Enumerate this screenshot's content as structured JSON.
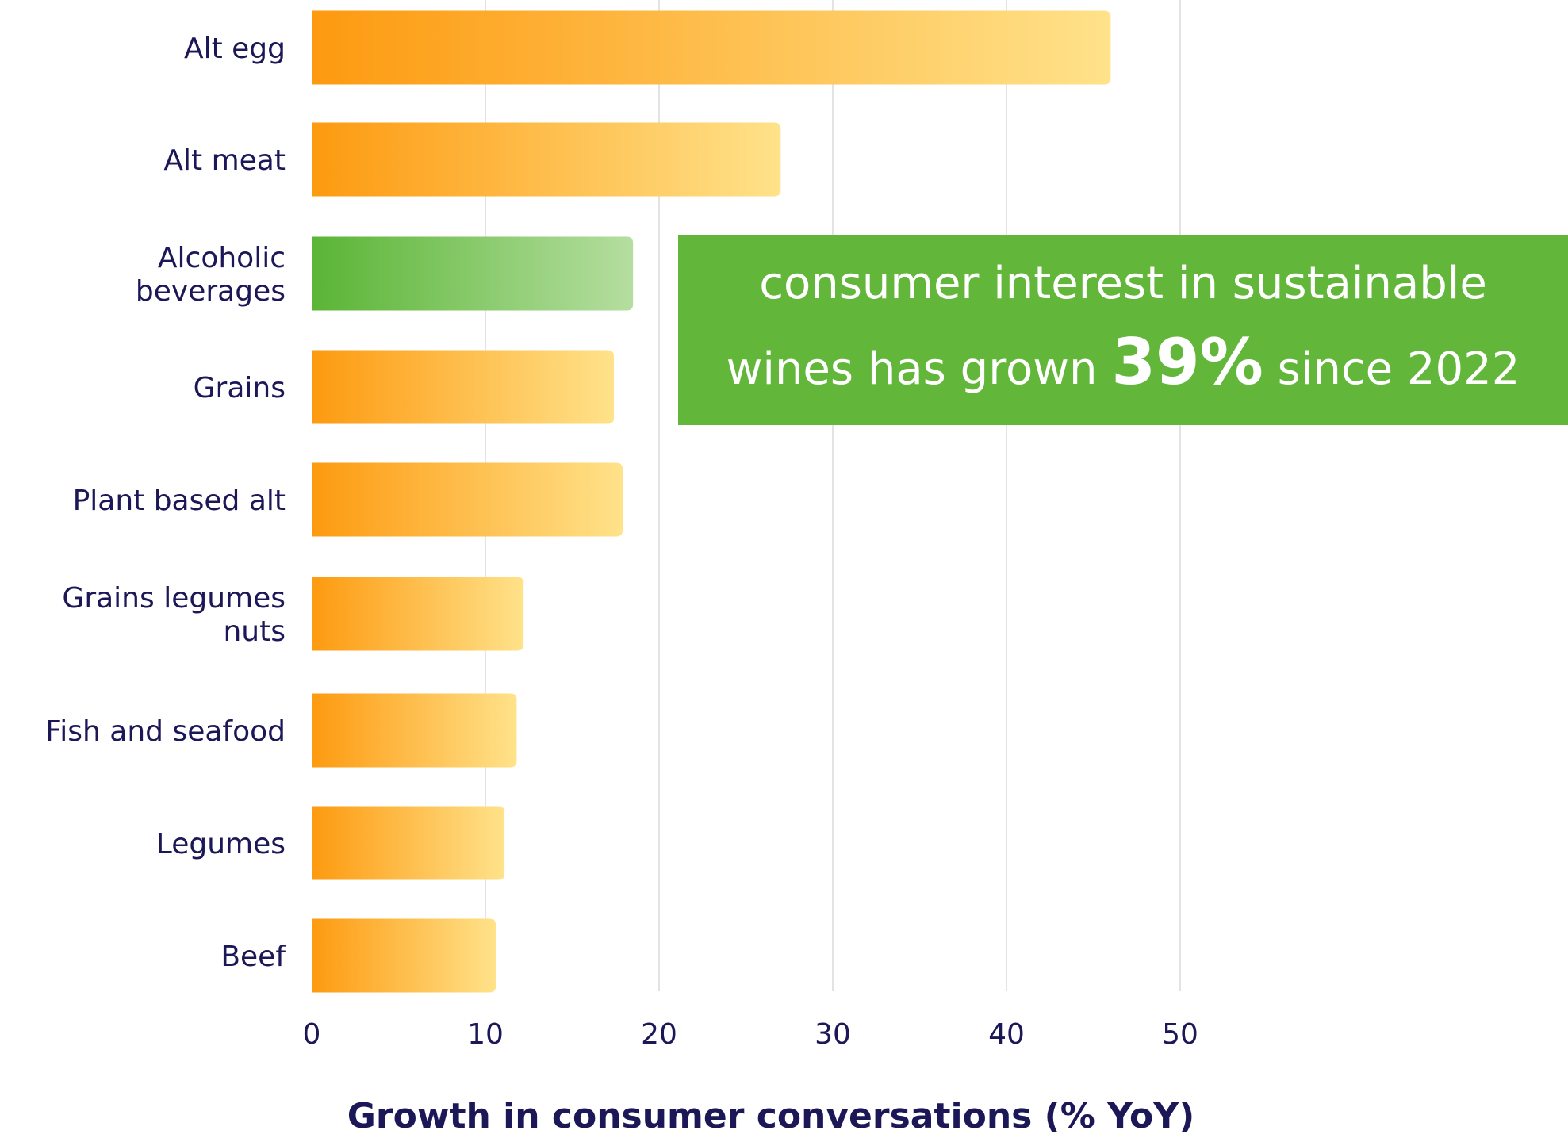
{
  "chart_data": {
    "type": "bar",
    "orientation": "horizontal",
    "categories": [
      "Alt egg",
      "Alt meat",
      "Alcoholic beverages",
      "Grains",
      "Plant based alt",
      "Grains legumes nuts",
      "Fish and seafood",
      "Legumes",
      "Beef"
    ],
    "category_lines": [
      [
        "Alt egg"
      ],
      [
        "Alt meat"
      ],
      [
        "Alcoholic",
        "beverages"
      ],
      [
        "Grains"
      ],
      [
        "Plant based alt"
      ],
      [
        "Grains legumes",
        "nuts"
      ],
      [
        "Fish and seafood"
      ],
      [
        "Legumes"
      ],
      [
        "Beef"
      ]
    ],
    "values": [
      46,
      27,
      18.5,
      17.4,
      17.9,
      12.2,
      11.8,
      11.1,
      10.6
    ],
    "highlight_index": 2,
    "xlim": [
      0,
      55
    ],
    "xticks": [
      0,
      10,
      20,
      30,
      40,
      50
    ],
    "tick_labels": [
      "0",
      "10",
      "20",
      "30",
      "40",
      "50"
    ],
    "xlabel": "Growth in consumer conversations (% YoY)",
    "grid": "vertical",
    "colors": {
      "bar_start": "#fd9a10",
      "bar_end": "#ffe28a",
      "highlight_start": "#5ab535",
      "highlight_end": "#b5dea0",
      "text": "#1c1757",
      "grid": "#e3e3e3"
    }
  },
  "callout": {
    "line1": "consumer interest in sustainable",
    "line2_pre": "wines has grown ",
    "highlight": "39%",
    "line2_post": " since 2022",
    "background": "#62b73a"
  }
}
